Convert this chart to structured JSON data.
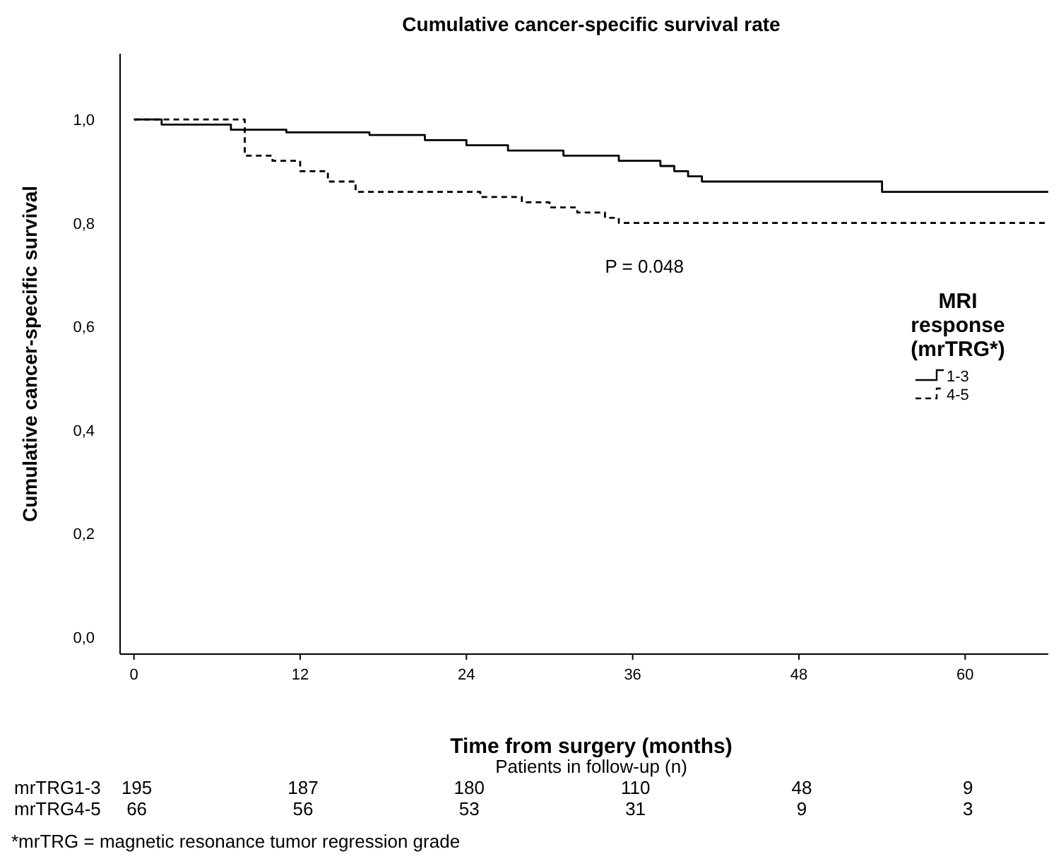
{
  "chart_data": {
    "type": "step",
    "title": "Cumulative cancer-specific survival rate",
    "xlabel": "Time from surgery (months)",
    "ylabel": "Cumulative cancer-specific survival",
    "legend_title": "MRI response (mrTRG*)",
    "legend": "right",
    "xlim": [
      -1,
      66
    ],
    "xticks": [
      0,
      12,
      24,
      36,
      48,
      60
    ],
    "ylim": [
      -0.033,
      1.127
    ],
    "yticks": [
      {
        "value": 0,
        "label": "0,0"
      },
      {
        "value": 0.2,
        "label": "0,2"
      },
      {
        "value": 0.4,
        "label": "0,4"
      },
      {
        "value": 0.6,
        "label": "0,6"
      },
      {
        "value": 0.8,
        "label": "0,8"
      },
      {
        "value": 1,
        "label": "1,0"
      }
    ],
    "series": [
      {
        "name": "1-3",
        "color": "#000000",
        "line_style": "solid",
        "x": [
          0,
          1,
          2,
          7,
          11,
          17,
          21,
          24,
          27,
          31,
          35,
          38,
          39,
          40,
          41,
          54,
          66
        ],
        "values": [
          1,
          1,
          0.99,
          0.98,
          0.975,
          0.97,
          0.96,
          0.95,
          0.94,
          0.93,
          0.92,
          0.91,
          0.9,
          0.89,
          0.88,
          0.86,
          0.86
        ]
      },
      {
        "name": "4-5",
        "color": "#000000",
        "line_style": "dashed",
        "x": [
          0,
          7,
          8,
          10,
          12,
          14,
          16,
          24,
          25,
          28,
          30,
          32,
          34,
          35,
          66
        ],
        "values": [
          1,
          1,
          0.93,
          0.92,
          0.9,
          0.88,
          0.86,
          0.86,
          0.85,
          0.84,
          0.83,
          0.82,
          0.81,
          0.8,
          0.8
        ]
      }
    ],
    "annotations": [
      "P = 0.048",
      "Patients in follow-up (n)",
      "mrTRG1-3",
      "195",
      "187",
      "180",
      "110",
      "48",
      "9",
      "mrTRG4-5",
      "66",
      "56",
      "53",
      "31",
      "9",
      "3",
      "*mrTRG = magnetic resonance tumor regression grade"
    ]
  }
}
